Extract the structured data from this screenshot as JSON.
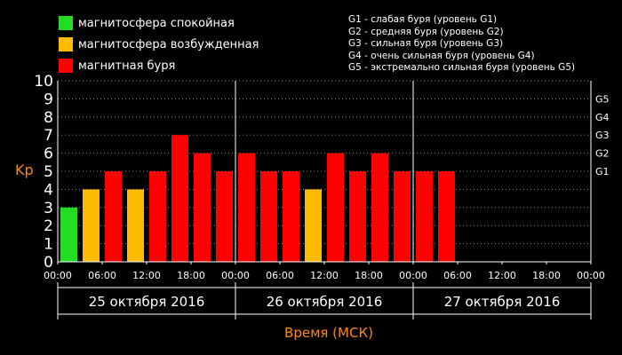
{
  "legend": {
    "items": [
      {
        "label": "магнитосфера спокойная",
        "color": "#22dd22"
      },
      {
        "label": "магнитосфера возбужденная",
        "color": "#ffbb00"
      },
      {
        "label": "магнитная буря",
        "color": "#ff0000"
      }
    ]
  },
  "storm_legend": [
    "G1 - слабая буря (уровень G1)",
    "G2 - средняя буря (уровень G2)",
    "G3 - сильная буря (уровень G3)",
    "G4 - очень сильная буря (уровень G4)",
    "G5 - экстремально сильная буря (уровень G5)"
  ],
  "chart_data": {
    "type": "bar",
    "ylabel": "Kp",
    "xlabel": "Время (МСК)",
    "ylim": [
      0,
      10
    ],
    "yticks": [
      "0",
      "1",
      "2",
      "3",
      "4",
      "5",
      "6",
      "7",
      "8",
      "9",
      "10"
    ],
    "right_ticks": [
      {
        "label": "G1",
        "value": 5
      },
      {
        "label": "G2",
        "value": 6
      },
      {
        "label": "G3",
        "value": 7
      },
      {
        "label": "G4",
        "value": 8
      },
      {
        "label": "G5",
        "value": 9
      }
    ],
    "time_ticks": [
      "00:00",
      "06:00",
      "12:00",
      "18:00",
      "00:00",
      "06:00",
      "12:00",
      "18:00",
      "00:00",
      "06:00",
      "12:00",
      "18:00",
      "00:00"
    ],
    "days": [
      "25 октября 2016",
      "26 октября 2016",
      "27 октября 2016"
    ],
    "values": [
      3,
      4,
      5,
      4,
      5,
      7,
      6,
      5,
      6,
      5,
      5,
      4,
      6,
      5,
      6,
      5,
      5,
      5
    ],
    "slots_total": 24,
    "thresholds": {
      "quiet_max": 3,
      "active_max": 4
    },
    "colors": {
      "quiet": "#22dd22",
      "active": "#ffbb00",
      "storm": "#ff0000",
      "accent": "#ff8800",
      "grid": "#ffffff"
    }
  }
}
